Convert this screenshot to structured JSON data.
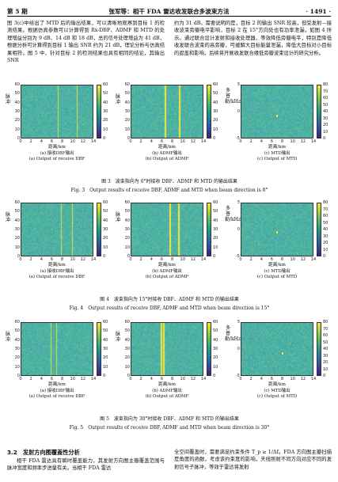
{
  "header": {
    "left": "第 5 期",
    "center": "张军等：相干 FDA 雷达收发联合多波束方法",
    "right": "· 1491 ·"
  },
  "text_top_left": "图 3(c)中给出了 MTD 后的输出结果，可以清晰地观察到目标 1 的检测结果。根据仿真参数可以计算得到 Rx-DBF、ADMF 和 MTD 的处理增益分别为 9 dB、14 dB 和 18 dB，总的信号处理增益为 41 dB，根据分析可计算得到目标 1 输出 SNR 约为 21 dB，理论分析与仿真结果相符。图 5 中，针对目标 2 的检测结果也具有相同的结论，其输出 SNR",
  "text_top_right": "约为 31 dB。需要说明的是，目标 2 的输出 SNR 较高，但受发射—接收波束旁瓣电平影响，目标 2 在 15°方向处也有功率泄漏，如图 4 所示。通过联合设计发射和接收处理器，等效降低旁瓣电平，特别是降低收发联合波束的高旁瓣，可缓解大目标能量泄漏，降低大目标对小目标的遮盖和影响，后续将开展收发联合缘低旁瓣波束设计的研究分析。",
  "figures": [
    {
      "caption_cn": "图 3　波束指向为 0°时接收 DBF、ADMF 和 MTD 的输出结果",
      "caption_en": "Fig. 3　Output results of receive DBF, ADMF and MTD when beam direction is 0°",
      "subs": [
        "(a) 接收DBF输出",
        "(b) ADMF输出",
        "(c) MTD输出"
      ],
      "subs_en": [
        "(a) Output of receive DBF",
        "(b) Output of ADMF",
        "(c) Output of MTD"
      ],
      "targets": [
        [
          0.5,
          0.76
        ],
        [
          0.46,
          0.65
        ]
      ]
    },
    {
      "caption_cn": "图 4　波束指向为 15°时接收 DBF、ADMF 和 MTD 的输出结果",
      "caption_en": "Fig. 4　Output results of receive DBF, ADMF and MTD when beam direction is 15°",
      "subs": [
        "(a) 接收DBF输出",
        "(b) ADMF输出",
        "(c) MTD输出"
      ],
      "subs_en": [
        "(a) Output of receive DBF",
        "(b) Output of ADMF",
        "(c) Output of MTD"
      ],
      "targets": [
        [
          0.54,
          0.7
        ],
        [
          0.52,
          0.64
        ]
      ]
    },
    {
      "caption_cn": "图 5　波束指向为 30°时接收 DBF、ADMF 和 MTD 的输出结果",
      "caption_en": "Fig. 5　Output results of receive DBF, ADMF and MTD when beam direction is 30°",
      "subs": [
        "(a) 接收DBF输出",
        "(b) ADMF输出",
        "(c) MTD输出"
      ],
      "subs_en": [
        "(a) Output of receive DBF",
        "(b) Output of ADMF",
        "(c) Output of MTD"
      ],
      "targets": [
        [
          0.4,
          0.48
        ],
        [
          0.4,
          0.44
        ]
      ]
    }
  ],
  "axes": {
    "ylabel_ab": "脉冲",
    "ylabel_c": "多普勒/kHz",
    "xlabel": "距离/km",
    "xticks": [
      "0",
      "2",
      "4",
      "6",
      "8",
      "10",
      "12",
      "14"
    ],
    "yticks_ab": [
      "60",
      "50",
      "40",
      "30",
      "20",
      "10",
      "0"
    ],
    "yticks_c": [
      "5",
      "0",
      "-5"
    ],
    "cbar_ticks": [
      "80",
      "70",
      "60",
      "50",
      "40",
      "30",
      "20",
      "10",
      "0"
    ],
    "cbar_ticks_ab_short": [
      "60",
      "50",
      "40",
      "30",
      "20",
      "10",
      "0"
    ]
  },
  "section": {
    "title": "3.2　发射方向图覆盖性分析"
  },
  "text_bottom_left": "相干 FDA 雷达具有瞬时覆盖能力，其发射方向图主瓣覆盖范围与脉冲宽度和频率步进量有关。当相干 FDA 雷达",
  "text_bottom_right": "全空间覆盖时，需要满足约束条件 T_p ≥ 1/Δf。FDA 方向图主瓣扫描是角度的函数，考虑该约束度的影响，天线照射不同方向对应不同的发射信号子脉冲，等效于雷达将发射"
}
